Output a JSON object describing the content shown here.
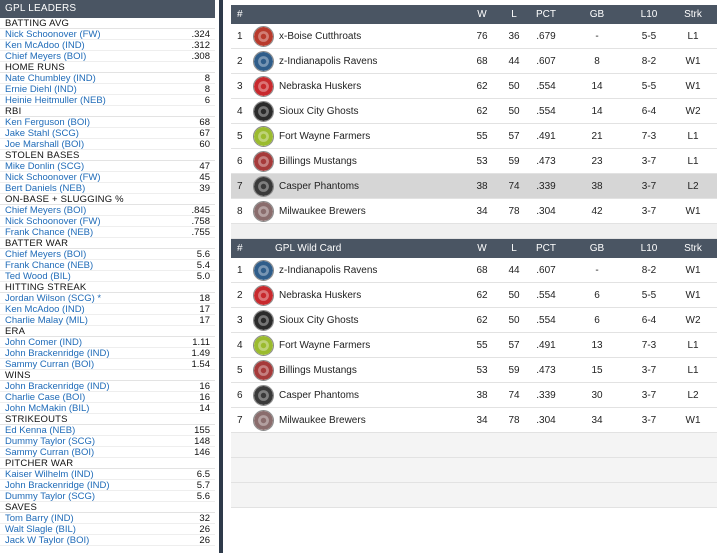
{
  "leaders": {
    "title": "GPL LEADERS",
    "categories": [
      {
        "name": "BATTING AVG",
        "rows": [
          {
            "player": "Nick Schoonover (FW)",
            "value": ".324"
          },
          {
            "player": "Ken McAdoo (IND)",
            "value": ".312"
          },
          {
            "player": "Chief Meyers (BOI)",
            "value": ".308"
          }
        ]
      },
      {
        "name": "HOME RUNS",
        "rows": [
          {
            "player": "Nate Chumbley (IND)",
            "value": "8"
          },
          {
            "player": "Ernie Diehl (IND)",
            "value": "8"
          },
          {
            "player": "Heinie Heitmuller (NEB)",
            "value": "6"
          }
        ]
      },
      {
        "name": "RBI",
        "rows": [
          {
            "player": "Ken Ferguson (BOI)",
            "value": "68"
          },
          {
            "player": "Jake Stahl (SCG)",
            "value": "67"
          },
          {
            "player": "Joe Marshall (BOI)",
            "value": "60"
          }
        ]
      },
      {
        "name": "STOLEN BASES",
        "rows": [
          {
            "player": "Mike Donlin (SCG)",
            "value": "47"
          },
          {
            "player": "Nick Schoonover (FW)",
            "value": "45"
          },
          {
            "player": "Bert Daniels (NEB)",
            "value": "39"
          }
        ]
      },
      {
        "name": "ON-BASE + SLUGGING %",
        "rows": [
          {
            "player": "Chief Meyers (BOI)",
            "value": ".845"
          },
          {
            "player": "Nick Schoonover (FW)",
            "value": ".758"
          },
          {
            "player": "Frank Chance (NEB)",
            "value": ".755"
          }
        ]
      },
      {
        "name": "BATTER WAR",
        "rows": [
          {
            "player": "Chief Meyers (BOI)",
            "value": "5.6"
          },
          {
            "player": "Frank Chance (NEB)",
            "value": "5.4"
          },
          {
            "player": "Ted Wood (BIL)",
            "value": "5.0"
          }
        ]
      },
      {
        "name": "HITTING STREAK",
        "rows": [
          {
            "player": "Jordan Wilson (SCG) *",
            "value": "18"
          },
          {
            "player": "Ken McAdoo (IND)",
            "value": "17"
          },
          {
            "player": "Charlie Malay (MIL)",
            "value": "17"
          }
        ]
      },
      {
        "name": "ERA",
        "rows": [
          {
            "player": "John Comer (IND)",
            "value": "1.11"
          },
          {
            "player": "John Brackenridge (IND)",
            "value": "1.49"
          },
          {
            "player": "Sammy Curran (BOI)",
            "value": "1.54"
          }
        ]
      },
      {
        "name": "WINS",
        "rows": [
          {
            "player": "John Brackenridge (IND)",
            "value": "16"
          },
          {
            "player": "Charlie Case (BOI)",
            "value": "16"
          },
          {
            "player": "John McMakin (BIL)",
            "value": "14"
          }
        ]
      },
      {
        "name": "STRIKEOUTS",
        "rows": [
          {
            "player": "Ed Kenna (NEB)",
            "value": "155"
          },
          {
            "player": "Dummy Taylor (SCG)",
            "value": "148"
          },
          {
            "player": "Sammy Curran (BOI)",
            "value": "146"
          }
        ]
      },
      {
        "name": "PITCHER WAR",
        "rows": [
          {
            "player": "Kaiser Wilhelm (IND)",
            "value": "6.5"
          },
          {
            "player": "John Brackenridge (IND)",
            "value": "5.7"
          },
          {
            "player": "Dummy Taylor (SCG)",
            "value": "5.6"
          }
        ]
      },
      {
        "name": "SAVES",
        "rows": [
          {
            "player": "Tom Barry (IND)",
            "value": "32"
          },
          {
            "player": "Walt Slagle (BIL)",
            "value": "26"
          },
          {
            "player": "Jack W Taylor (BOI)",
            "value": "26"
          }
        ]
      }
    ]
  },
  "standings": {
    "headers": {
      "rank": "#",
      "team": "",
      "w": "W",
      "l": "L",
      "pct": "PCT",
      "gb": "GB",
      "l10": "L10",
      "strk": "Strk"
    },
    "rows": [
      {
        "rank": "1",
        "team": "x-Boise Cutthroats",
        "logo": "cutthroats-logo-icon",
        "color": "#b83a2c",
        "w": "76",
        "l": "36",
        "pct": ".679",
        "gb": "-",
        "l10": "5-5",
        "strk": "L1"
      },
      {
        "rank": "2",
        "team": "z-Indianapolis Ravens",
        "logo": "ravens-logo-icon",
        "color": "#2f5d8a",
        "w": "68",
        "l": "44",
        "pct": ".607",
        "gb": "8",
        "l10": "8-2",
        "strk": "W1"
      },
      {
        "rank": "3",
        "team": "Nebraska Huskers",
        "logo": "huskers-logo-icon",
        "color": "#c8292d",
        "w": "62",
        "l": "50",
        "pct": ".554",
        "gb": "14",
        "l10": "5-5",
        "strk": "W1"
      },
      {
        "rank": "4",
        "team": "Sioux City Ghosts",
        "logo": "ghosts-logo-icon",
        "color": "#2b2b2b",
        "w": "62",
        "l": "50",
        "pct": ".554",
        "gb": "14",
        "l10": "6-4",
        "strk": "W2"
      },
      {
        "rank": "5",
        "team": "Fort Wayne Farmers",
        "logo": "farmers-logo-icon",
        "color": "#9bbb2e",
        "w": "55",
        "l": "57",
        "pct": ".491",
        "gb": "21",
        "l10": "7-3",
        "strk": "L1"
      },
      {
        "rank": "6",
        "team": "Billings Mustangs",
        "logo": "mustangs-logo-icon",
        "color": "#a63a3a",
        "w": "53",
        "l": "59",
        "pct": ".473",
        "gb": "23",
        "l10": "3-7",
        "strk": "L1"
      },
      {
        "rank": "7",
        "team": "Casper Phantoms",
        "logo": "phantoms-logo-icon",
        "color": "#3a3a3a",
        "w": "38",
        "l": "74",
        "pct": ".339",
        "gb": "38",
        "l10": "3-7",
        "strk": "L2",
        "highlight": true
      },
      {
        "rank": "8",
        "team": "Milwaukee Brewers",
        "logo": "brewers-logo-icon",
        "color": "#8a6d6d",
        "w": "34",
        "l": "78",
        "pct": ".304",
        "gb": "42",
        "l10": "3-7",
        "strk": "W1"
      }
    ]
  },
  "wildcard": {
    "headers": {
      "rank": "#",
      "team": "GPL  Wild Card",
      "w": "W",
      "l": "L",
      "pct": "PCT",
      "gb": "GB",
      "l10": "L10",
      "strk": "Strk"
    },
    "rows": [
      {
        "rank": "1",
        "team": "z-Indianapolis Ravens",
        "logo": "ravens-logo-icon",
        "color": "#2f5d8a",
        "w": "68",
        "l": "44",
        "pct": ".607",
        "gb": "-",
        "l10": "8-2",
        "strk": "W1"
      },
      {
        "rank": "2",
        "team": "Nebraska Huskers",
        "logo": "huskers-logo-icon",
        "color": "#c8292d",
        "w": "62",
        "l": "50",
        "pct": ".554",
        "gb": "6",
        "l10": "5-5",
        "strk": "W1"
      },
      {
        "rank": "3",
        "team": "Sioux City Ghosts",
        "logo": "ghosts-logo-icon",
        "color": "#2b2b2b",
        "w": "62",
        "l": "50",
        "pct": ".554",
        "gb": "6",
        "l10": "6-4",
        "strk": "W2"
      },
      {
        "rank": "4",
        "team": "Fort Wayne Farmers",
        "logo": "farmers-logo-icon",
        "color": "#9bbb2e",
        "w": "55",
        "l": "57",
        "pct": ".491",
        "gb": "13",
        "l10": "7-3",
        "strk": "L1"
      },
      {
        "rank": "5",
        "team": "Billings Mustangs",
        "logo": "mustangs-logo-icon",
        "color": "#a63a3a",
        "w": "53",
        "l": "59",
        "pct": ".473",
        "gb": "15",
        "l10": "3-7",
        "strk": "L1"
      },
      {
        "rank": "6",
        "team": "Casper Phantoms",
        "logo": "phantoms-logo-icon",
        "color": "#3a3a3a",
        "w": "38",
        "l": "74",
        "pct": ".339",
        "gb": "30",
        "l10": "3-7",
        "strk": "L2"
      },
      {
        "rank": "7",
        "team": "Milwaukee Brewers",
        "logo": "brewers-logo-icon",
        "color": "#8a6d6d",
        "w": "34",
        "l": "78",
        "pct": ".304",
        "gb": "34",
        "l10": "3-7",
        "strk": "W1"
      }
    ]
  }
}
